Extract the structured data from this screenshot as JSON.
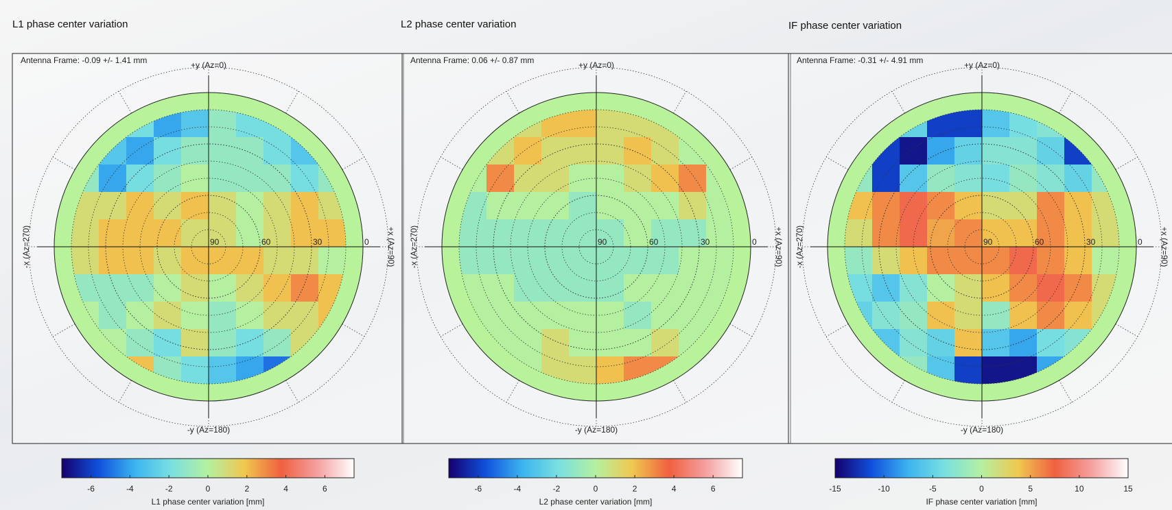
{
  "chart_data": [
    {
      "type": "polar-heatmap",
      "title": "L1 phase center variation",
      "annotation": "Antenna Frame: -0.09 +/- 1.41 mm",
      "direction_labels": [
        "+y (Az=0)",
        "+x (Az=90)",
        "-y (Az=180)",
        "-x (Az=270)"
      ],
      "rlim": [
        90,
        0
      ],
      "rticks": [
        90,
        60,
        30,
        0
      ],
      "grid": [
        [
          null,
          null,
          -2,
          -4,
          -3,
          -1,
          -2,
          -2,
          null,
          null
        ],
        [
          null,
          -3,
          -4,
          -2,
          -1,
          -1,
          -1,
          -2,
          -3,
          null
        ],
        [
          -1,
          -4,
          -2,
          -1,
          0,
          -1,
          -1,
          -1,
          -2,
          -1
        ],
        [
          1,
          1,
          2,
          1,
          2,
          1,
          0,
          1,
          2,
          1
        ],
        [
          1,
          2,
          2,
          2,
          1,
          1,
          0,
          1,
          2,
          2
        ],
        [
          1,
          2,
          2,
          1,
          2,
          2,
          2,
          1,
          1,
          0
        ],
        [
          -1,
          -1,
          -1,
          0,
          1,
          0,
          1,
          2,
          3,
          2
        ],
        [
          0,
          -1,
          0,
          1,
          0,
          -1,
          0,
          1,
          1,
          2
        ],
        [
          null,
          0,
          -1,
          -2,
          1,
          -1,
          -2,
          -1,
          1,
          null
        ],
        [
          null,
          null,
          2,
          -1,
          -2,
          -3,
          -4,
          -5,
          null,
          null
        ]
      ],
      "clim": [
        -7.5,
        7.5
      ],
      "cticks": [
        -6,
        -4,
        -2,
        0,
        2,
        4,
        6
      ],
      "colorbar_label": "L1 phase center variation [mm]",
      "colormap": [
        "#14006e",
        "#1050dc",
        "#3cb4f0",
        "#7ae0e0",
        "#b4f0a0",
        "#f0c850",
        "#f06040",
        "#f4a0a0",
        "#ffffff"
      ]
    },
    {
      "type": "polar-heatmap",
      "title": "L2 phase center variation",
      "annotation": "Antenna Frame: 0.06 +/- 0.87 mm",
      "direction_labels": [
        "+y (Az=0)",
        "+x (Az=90)",
        "-y (Az=180)",
        "-x (Az=270)"
      ],
      "rlim": [
        90,
        0
      ],
      "rticks": [
        90,
        60,
        30,
        0
      ],
      "grid": [
        [
          null,
          null,
          1,
          2,
          2,
          1,
          1,
          1,
          null,
          null
        ],
        [
          null,
          1,
          2,
          1,
          1,
          1,
          2,
          1,
          0,
          null
        ],
        [
          0,
          3,
          1,
          1,
          0,
          0,
          1,
          2,
          3,
          0
        ],
        [
          -1,
          0,
          0,
          0,
          -1,
          0,
          0,
          0,
          1,
          0
        ],
        [
          -1,
          -1,
          -1,
          -1,
          -1,
          -1,
          0,
          -1,
          -1,
          0
        ],
        [
          -1,
          -1,
          -1,
          -1,
          -1,
          -1,
          -1,
          -1,
          0,
          0
        ],
        [
          0,
          0,
          -1,
          -1,
          -1,
          -1,
          0,
          0,
          0,
          0
        ],
        [
          0,
          0,
          0,
          0,
          0,
          0,
          -1,
          0,
          0,
          0
        ],
        [
          null,
          0,
          0,
          1,
          0,
          0,
          0,
          1,
          0,
          null
        ],
        [
          null,
          null,
          0,
          1,
          1,
          2,
          3,
          3,
          null,
          null
        ]
      ],
      "clim": [
        -7.5,
        7.5
      ],
      "cticks": [
        -6,
        -4,
        -2,
        0,
        2,
        4,
        6
      ],
      "colorbar_label": "L2 phase center variation [mm]",
      "colormap": [
        "#14006e",
        "#1050dc",
        "#3cb4f0",
        "#7ae0e0",
        "#b4f0a0",
        "#f0c850",
        "#f06040",
        "#f4a0a0",
        "#ffffff"
      ]
    },
    {
      "type": "polar-heatmap",
      "title": "IF phase center variation",
      "annotation": "Antenna Frame: -0.31 +/- 4.91 mm",
      "direction_labels": [
        "+y (Az=0)",
        "+x (Az=90)",
        "-y (Az=180)",
        "-x (Az=270)"
      ],
      "rlim": [
        90,
        0
      ],
      "rticks": [
        90,
        60,
        30,
        0
      ],
      "grid": [
        [
          null,
          null,
          -5,
          -12,
          -12,
          -6,
          -4,
          -3,
          null,
          null
        ],
        [
          null,
          -12,
          -14,
          -8,
          -5,
          -3,
          -3,
          -5,
          -12,
          null
        ],
        [
          -2,
          -12,
          -6,
          -2,
          -3,
          -4,
          -2,
          -3,
          -5,
          -2
        ],
        [
          4,
          6,
          8,
          6,
          4,
          2,
          2,
          6,
          4,
          2
        ],
        [
          2,
          6,
          8,
          5,
          6,
          4,
          4,
          6,
          4,
          2
        ],
        [
          -2,
          2,
          4,
          6,
          6,
          6,
          8,
          6,
          4,
          0
        ],
        [
          -4,
          -6,
          -3,
          0,
          2,
          4,
          6,
          8,
          6,
          2
        ],
        [
          -5,
          -3,
          -2,
          4,
          2,
          -2,
          4,
          6,
          4,
          2
        ],
        [
          null,
          -6,
          -3,
          -5,
          4,
          -6,
          -8,
          -4,
          -3,
          null
        ],
        [
          null,
          null,
          -2,
          -6,
          -12,
          -14,
          -14,
          -8,
          null,
          null
        ]
      ],
      "clim": [
        -15,
        15
      ],
      "cticks": [
        -15,
        -10,
        -5,
        0,
        5,
        10,
        15
      ],
      "colorbar_label": "IF phase center variation [mm]",
      "colormap": [
        "#14006e",
        "#1050dc",
        "#3cb4f0",
        "#7ae0e0",
        "#b4f0a0",
        "#f0c850",
        "#f06040",
        "#f4a0a0",
        "#ffffff"
      ]
    }
  ]
}
